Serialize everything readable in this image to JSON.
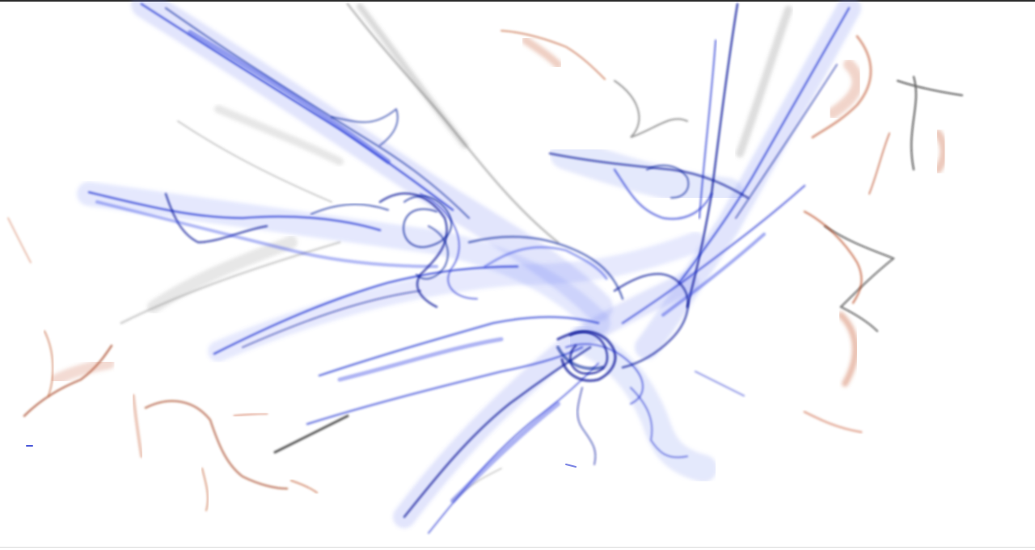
{
  "artwork": {
    "palette": {
      "background": "#ffffff",
      "primary_blue": "#1f2fd0",
      "deep_blue": "#0a1a9a",
      "light_blue": "#7f8ff0",
      "rust": "#b8441a",
      "gray": "#4a4a4a",
      "frame_top": "#2b2b2b"
    },
    "style": "translucent ink smoke strokes"
  }
}
